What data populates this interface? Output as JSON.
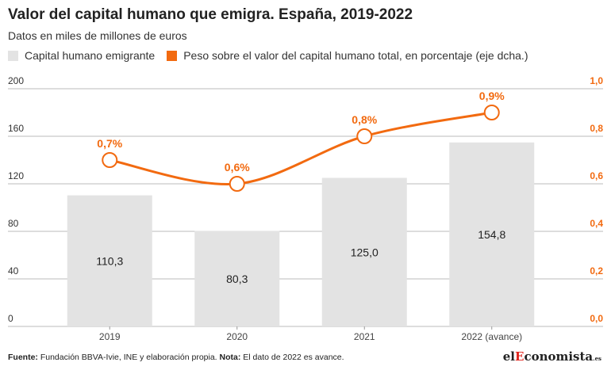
{
  "header": {
    "title": "Valor del capital humano que emigra. España, 2019-2022",
    "subtitle": "Datos en miles de millones de euros"
  },
  "legend": {
    "bars_label": "Capital humano emigrante",
    "line_label": "Peso sobre el valor del capital humano total, en porcentaje (eje dcha.)"
  },
  "colors": {
    "bar": "#e3e3e3",
    "line": "#f26a10",
    "axis_right": "#f26a10",
    "grid": "#bbbbbb"
  },
  "chart_data": {
    "type": "bar",
    "categories": [
      "2019",
      "2020",
      "2021",
      "2022 (avance)"
    ],
    "series": [
      {
        "type": "bar",
        "values": [
          110.3,
          80.3,
          125.0,
          154.8
        ],
        "labels": [
          "110,3",
          "80,3",
          "125,0",
          "154,8"
        ],
        "axis": "left"
      },
      {
        "type": "line",
        "values": [
          0.7,
          0.6,
          0.8,
          0.9
        ],
        "labels": [
          "0,7%",
          "0,6%",
          "0,8%",
          "0,9%"
        ],
        "axis": "right"
      }
    ],
    "y_left": {
      "ylim": [
        0,
        200
      ],
      "ticks": [
        0,
        40,
        80,
        120,
        160,
        200
      ],
      "tick_labels": [
        "0",
        "40",
        "80",
        "120",
        "160",
        "200"
      ]
    },
    "y_right": {
      "ylim": [
        0,
        1.0
      ],
      "ticks": [
        0,
        0.2,
        0.4,
        0.6,
        0.8,
        1.0
      ],
      "tick_labels": [
        "0,0",
        "0,2",
        "0,4",
        "0,6",
        "0,8",
        "1,0"
      ]
    },
    "grid": true
  },
  "footer": {
    "source_label": "Fuente:",
    "source_text": " Fundación BBVA-Ivie, INE y elaboración propia.",
    "note_label": " Nota:",
    "note_text": " El dato de 2022 es avance."
  },
  "brand": {
    "prefix": "el",
    "highlight": "E",
    "rest": "conomista",
    "suffix": ".es"
  }
}
